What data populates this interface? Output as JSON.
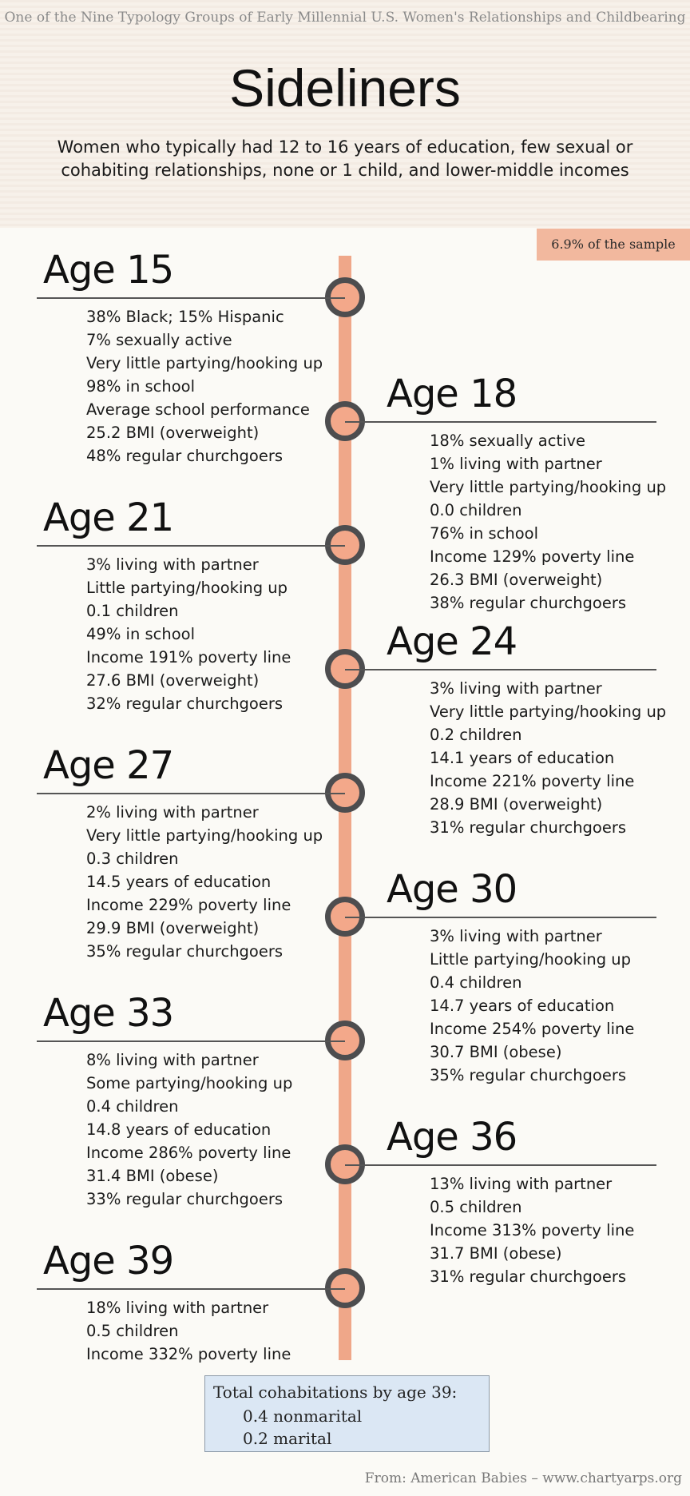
{
  "header": {
    "supertitle": "One of the Nine Typology Groups of Early Millennial U.S. Women's Relationships and Childbearing",
    "title": "Sideliners",
    "subtitle": "Women who typically had 12 to 16 years of education, few sexual or cohabiting relationships, none or 1 child, and lower-middle incomes"
  },
  "badge": "6.9% of the sample",
  "timeline": [
    {
      "age": "Age 15",
      "side": "left",
      "items": [
        "38% Black; 15% Hispanic",
        "7% sexually active",
        "Very little partying/hooking up",
        "98% in school",
        "Average school performance",
        "25.2 BMI (overweight)",
        "48% regular churchgoers"
      ]
    },
    {
      "age": "Age 18",
      "side": "right",
      "items": [
        "18% sexually active",
        "1% living with partner",
        "Very little partying/hooking up",
        "0.0 children",
        "76% in school",
        "Income 129% poverty line",
        "26.3 BMI (overweight)",
        "38% regular churchgoers"
      ]
    },
    {
      "age": "Age 21",
      "side": "left",
      "items": [
        "3% living with partner",
        "Little partying/hooking up",
        "0.1 children",
        "49% in school",
        "Income 191% poverty line",
        "27.6 BMI (overweight)",
        "32% regular churchgoers"
      ]
    },
    {
      "age": "Age 24",
      "side": "right",
      "items": [
        "3% living with partner",
        "Very little partying/hooking up",
        "0.2 children",
        "14.1 years of education",
        "Income 221% poverty line",
        "28.9 BMI (overweight)",
        "31% regular churchgoers"
      ]
    },
    {
      "age": "Age 27",
      "side": "left",
      "items": [
        "2% living with partner",
        "Very little partying/hooking up",
        "0.3 children",
        "14.5 years of education",
        "Income 229% poverty line",
        "29.9 BMI (overweight)",
        "35% regular churchgoers"
      ]
    },
    {
      "age": "Age 30",
      "side": "right",
      "items": [
        "3% living with partner",
        "Little partying/hooking up",
        "0.4 children",
        "14.7 years of education",
        "Income 254% poverty line",
        "30.7 BMI (obese)",
        "35% regular churchgoers"
      ]
    },
    {
      "age": "Age 33",
      "side": "left",
      "items": [
        "8% living with partner",
        "Some partying/hooking up",
        "0.4 children",
        "14.8 years of education",
        "Income 286% poverty line",
        "31.4 BMI (obese)",
        "33% regular churchgoers"
      ]
    },
    {
      "age": "Age 36",
      "side": "right",
      "items": [
        "13% living with partner",
        "0.5 children",
        "Income 313% poverty line",
        "31.7 BMI (obese)",
        "31% regular churchgoers"
      ]
    },
    {
      "age": "Age 39",
      "side": "left",
      "items": [
        "18% living with partner",
        "0.5 children",
        "Income 332% poverty line"
      ]
    }
  ],
  "totals": {
    "title": "Total cohabitations by age 39:",
    "nonmarital": "0.4 nonmarital",
    "marital": "0.2 marital"
  },
  "footer": "From: American Babies – www.chartyarps.org",
  "colors": {
    "spine": "#efa789",
    "node_fill": "#f3a88a",
    "node_ring": "#4d4d4f",
    "badge": "#f2b89e",
    "totals_bg": "#dbe7f4"
  }
}
